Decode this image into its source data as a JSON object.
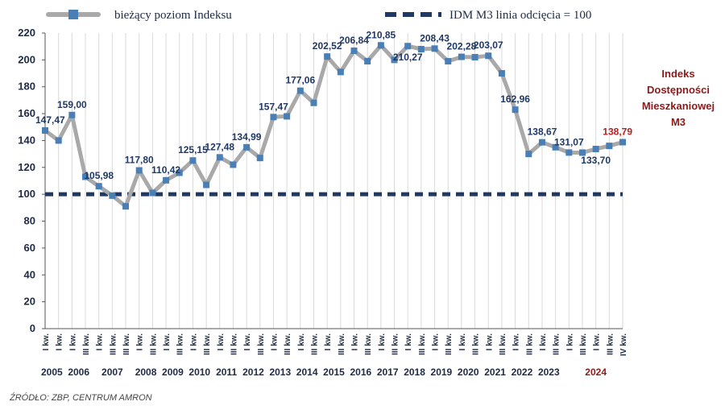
{
  "legend": {
    "series_label": "bieżący poziom Indeksu",
    "threshold_label": "IDM M3 linia odcięcia = 100"
  },
  "side_note": [
    "Indeks",
    "Dostępności",
    "Mieszkaniowej",
    "M3"
  ],
  "source": "ŹRÓDŁO: ZBP, CENTRUM AMRON",
  "colors": {
    "series": "#a9a9a9",
    "marker": "#4a7fb5",
    "threshold": "#1f3864",
    "grid": "#d9d9d9",
    "highlight": "#b22222"
  },
  "chart_data": {
    "type": "line",
    "ylim": [
      0,
      220
    ],
    "yticks": [
      0,
      20,
      40,
      60,
      80,
      100,
      120,
      140,
      160,
      180,
      200,
      220
    ],
    "grid": "vertical",
    "legend_position": "top",
    "threshold": 100,
    "x": [
      "I kw.",
      "I kw.",
      "I kw.",
      "III kw.",
      "I kw.",
      "III kw.",
      "III kw.",
      "I kw.",
      "III kw.",
      "I kw.",
      "III kw.",
      "I kw.",
      "III kw.",
      "I kw.",
      "III kw.",
      "I kw.",
      "III kw.",
      "I kw.",
      "III kw.",
      "I kw.",
      "III kw.",
      "I kw.",
      "III kw.",
      "I kw.",
      "III kw.",
      "I kw.",
      "III kw.",
      "I kw.",
      "III kw.",
      "I kw.",
      "III kw.",
      "I kw.",
      "III kw.",
      "I kw.",
      "III kw.",
      "I kw.",
      "III kw.",
      "I kw.",
      "III kw.",
      "I kw.",
      "III kw.",
      "I kw.",
      "III kw.",
      "IV kw."
    ],
    "years": [
      {
        "label": "2005",
        "start": 0,
        "end": 1
      },
      {
        "label": "2006",
        "start": 2,
        "end": 3
      },
      {
        "label": "2007",
        "start": 4,
        "end": 6
      },
      {
        "label": "2008",
        "start": 7,
        "end": 8
      },
      {
        "label": "2009",
        "start": 9,
        "end": 10
      },
      {
        "label": "2010",
        "start": 11,
        "end": 12
      },
      {
        "label": "2011",
        "start": 13,
        "end": 14
      },
      {
        "label": "2012",
        "start": 15,
        "end": 16
      },
      {
        "label": "2013",
        "start": 17,
        "end": 18
      },
      {
        "label": "2014",
        "start": 19,
        "end": 20
      },
      {
        "label": "2015",
        "start": 21,
        "end": 22
      },
      {
        "label": "2016",
        "start": 23,
        "end": 24
      },
      {
        "label": "2017",
        "start": 25,
        "end": 26
      },
      {
        "label": "2018",
        "start": 27,
        "end": 28
      },
      {
        "label": "2019",
        "start": 29,
        "end": 30
      },
      {
        "label": "2020",
        "start": 31,
        "end": 32
      },
      {
        "label": "2021",
        "start": 33,
        "end": 34
      },
      {
        "label": "2022",
        "start": 35,
        "end": 36
      },
      {
        "label": "2023",
        "start": 37,
        "end": 38
      },
      {
        "label": "2024",
        "start": 39,
        "end": 43,
        "highlight": true
      }
    ],
    "series": [
      {
        "values": [
          147.47,
          140,
          159.0,
          113,
          105.98,
          99,
          91,
          117.8,
          101,
          110.42,
          116,
          125.15,
          107,
          127.48,
          122,
          134.99,
          127,
          157.47,
          158,
          177.06,
          168,
          202.52,
          191,
          206.84,
          199,
          210.85,
          200,
          210.27,
          208,
          208.43,
          199,
          202.28,
          202,
          203.07,
          190,
          162.96,
          130,
          138.67,
          135,
          131.07,
          131,
          133.7,
          136,
          138.79
        ]
      }
    ],
    "data_labels": [
      {
        "i": 0,
        "text": "147,47",
        "pos": "above"
      },
      {
        "i": 2,
        "text": "159,00",
        "pos": "above"
      },
      {
        "i": 4,
        "text": "105,98",
        "pos": "above"
      },
      {
        "i": 7,
        "text": "117,80",
        "pos": "above"
      },
      {
        "i": 9,
        "text": "110,42",
        "pos": "above"
      },
      {
        "i": 11,
        "text": "125,15",
        "pos": "above"
      },
      {
        "i": 13,
        "text": "127,48",
        "pos": "above"
      },
      {
        "i": 15,
        "text": "134,99",
        "pos": "above"
      },
      {
        "i": 17,
        "text": "157,47",
        "pos": "above"
      },
      {
        "i": 19,
        "text": "177,06",
        "pos": "above"
      },
      {
        "i": 21,
        "text": "202,52",
        "pos": "above"
      },
      {
        "i": 23,
        "text": "206,84",
        "pos": "above"
      },
      {
        "i": 25,
        "text": "210,85",
        "pos": "above"
      },
      {
        "i": 27,
        "text": "210,27",
        "pos": "below"
      },
      {
        "i": 29,
        "text": "208,43",
        "pos": "above"
      },
      {
        "i": 31,
        "text": "202,28",
        "pos": "above"
      },
      {
        "i": 33,
        "text": "203,07",
        "pos": "above"
      },
      {
        "i": 35,
        "text": "162,96",
        "pos": "above"
      },
      {
        "i": 37,
        "text": "138,67",
        "pos": "above"
      },
      {
        "i": 39,
        "text": "131,07",
        "pos": "above"
      },
      {
        "i": 41,
        "text": "133,70",
        "pos": "below"
      },
      {
        "i": 43,
        "text": "138,79",
        "pos": "above",
        "highlight": true
      }
    ]
  }
}
